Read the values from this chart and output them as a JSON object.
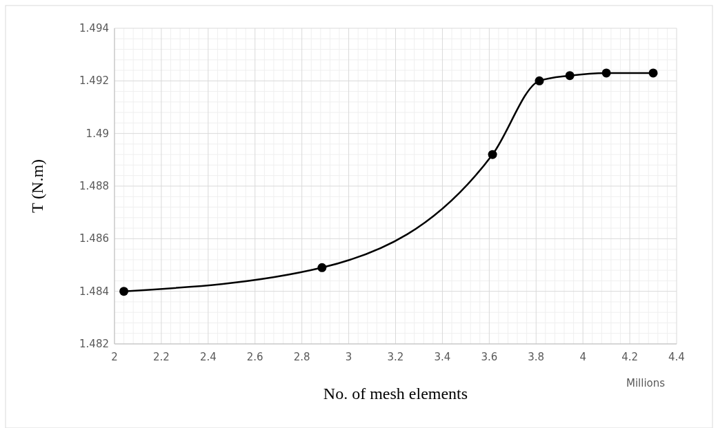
{
  "chart_data": {
    "type": "line",
    "xlabel": "No. of mesh elements",
    "ylabel": "T (N.m)",
    "annotations": [
      "Millions"
    ],
    "x": [
      2.04,
      2.886,
      3.614,
      3.814,
      3.944,
      4.1,
      4.3
    ],
    "series": [
      {
        "color": "#000000",
        "values": [
          1.484,
          1.4849,
          1.4892,
          1.492,
          1.4922,
          1.4923,
          1.4923
        ]
      }
    ],
    "xlim": [
      2,
      4.4
    ],
    "xticks": [
      2,
      2.2,
      2.4,
      2.6,
      2.8,
      3,
      3.2,
      3.4,
      3.6,
      3.8,
      4,
      4.2,
      4.4
    ],
    "ylim": [
      1.482,
      1.494
    ],
    "yticks": [
      {
        "value": 1.482,
        "label": "1.482"
      },
      {
        "value": 1.484,
        "label": "1.484"
      },
      {
        "value": 1.486,
        "label": "1.486"
      },
      {
        "value": 1.488,
        "label": "1.488"
      },
      {
        "value": 1.49,
        "label": "1.49"
      },
      {
        "value": 1.492,
        "label": "1.492"
      },
      {
        "value": 1.494,
        "label": "1.494"
      }
    ],
    "grid": true,
    "marker": "circle",
    "line_style": "solid"
  }
}
